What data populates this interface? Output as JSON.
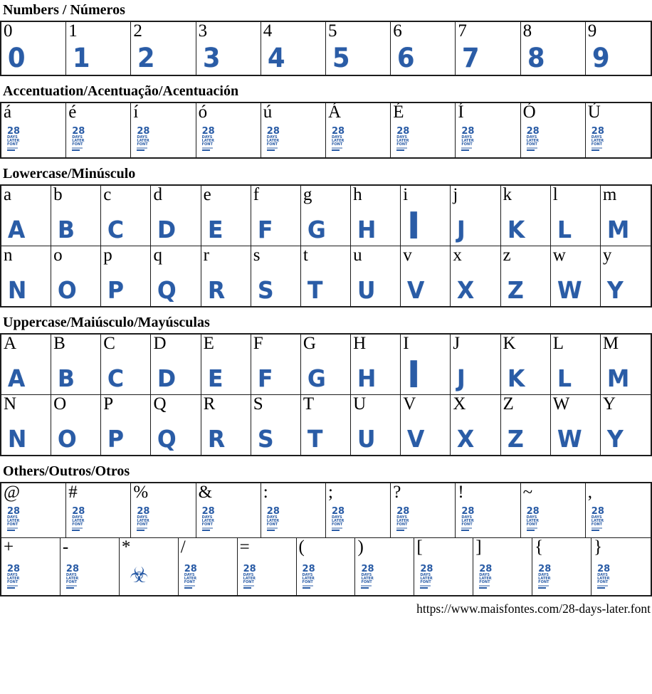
{
  "colors": {
    "glyph_blue": "#2a5ca6",
    "border": "#1c1c1c",
    "text": "#000000"
  },
  "placeholder_logo": {
    "line1": "28",
    "line2": "DAYS",
    "line3": "LATER",
    "line4": "FONT"
  },
  "biohazard_icon_char": "☣",
  "footer": {
    "url": "https://www.maisfontes.com/28-days-later.font"
  },
  "sections": [
    {
      "id": "numbers",
      "title": "Numbers / Números",
      "rows": [
        [
          {
            "char": "0",
            "type": "letter",
            "glyph": "0"
          },
          {
            "char": "1",
            "type": "letter",
            "glyph": "1"
          },
          {
            "char": "2",
            "type": "letter",
            "glyph": "2"
          },
          {
            "char": "3",
            "type": "letter",
            "glyph": "3"
          },
          {
            "char": "4",
            "type": "letter",
            "glyph": "4"
          },
          {
            "char": "5",
            "type": "letter",
            "glyph": "5"
          },
          {
            "char": "6",
            "type": "letter",
            "glyph": "6"
          },
          {
            "char": "7",
            "type": "letter",
            "glyph": "7"
          },
          {
            "char": "8",
            "type": "letter",
            "glyph": "8"
          },
          {
            "char": "9",
            "type": "letter",
            "glyph": "9"
          }
        ]
      ]
    },
    {
      "id": "accent",
      "title": "Accentuation/Acentuação/Acentuación",
      "rows": [
        [
          {
            "char": "á",
            "type": "logo"
          },
          {
            "char": "é",
            "type": "logo"
          },
          {
            "char": "í",
            "type": "logo"
          },
          {
            "char": "ó",
            "type": "logo"
          },
          {
            "char": "ú",
            "type": "logo"
          },
          {
            "char": "Á",
            "type": "logo"
          },
          {
            "char": "É",
            "type": "logo"
          },
          {
            "char": "Í",
            "type": "logo"
          },
          {
            "char": "Ó",
            "type": "logo"
          },
          {
            "char": "Ú",
            "type": "logo"
          }
        ]
      ]
    },
    {
      "id": "lowercase",
      "title": "Lowercase/Minúsculo",
      "rows": [
        [
          {
            "char": "a",
            "type": "letter",
            "glyph": "A"
          },
          {
            "char": "b",
            "type": "letter",
            "glyph": "B"
          },
          {
            "char": "c",
            "type": "letter",
            "glyph": "C"
          },
          {
            "char": "d",
            "type": "letter",
            "glyph": "D"
          },
          {
            "char": "e",
            "type": "letter",
            "glyph": "E"
          },
          {
            "char": "f",
            "type": "letter",
            "glyph": "F"
          },
          {
            "char": "g",
            "type": "letter",
            "glyph": "G"
          },
          {
            "char": "h",
            "type": "letter",
            "glyph": "H"
          },
          {
            "char": "i",
            "type": "letter",
            "glyph": "I"
          },
          {
            "char": "j",
            "type": "letter",
            "glyph": "J"
          },
          {
            "char": "k",
            "type": "letter",
            "glyph": "K"
          },
          {
            "char": "l",
            "type": "letter",
            "glyph": "L"
          },
          {
            "char": "m",
            "type": "letter",
            "glyph": "M"
          }
        ],
        [
          {
            "char": "n",
            "type": "letter",
            "glyph": "N"
          },
          {
            "char": "o",
            "type": "letter",
            "glyph": "O"
          },
          {
            "char": "p",
            "type": "letter",
            "glyph": "P"
          },
          {
            "char": "q",
            "type": "letter",
            "glyph": "Q"
          },
          {
            "char": "r",
            "type": "letter",
            "glyph": "R"
          },
          {
            "char": "s",
            "type": "letter",
            "glyph": "S"
          },
          {
            "char": "t",
            "type": "letter",
            "glyph": "T"
          },
          {
            "char": "u",
            "type": "letter",
            "glyph": "U"
          },
          {
            "char": "v",
            "type": "letter",
            "glyph": "V"
          },
          {
            "char": "x",
            "type": "letter",
            "glyph": "X"
          },
          {
            "char": "z",
            "type": "letter",
            "glyph": "Z"
          },
          {
            "char": "w",
            "type": "letter",
            "glyph": "W"
          },
          {
            "char": "y",
            "type": "letter",
            "glyph": "Y"
          }
        ]
      ]
    },
    {
      "id": "uppercase",
      "title": "Uppercase/Maiúsculo/Mayúsculas",
      "rows": [
        [
          {
            "char": "A",
            "type": "letter",
            "glyph": "A"
          },
          {
            "char": "B",
            "type": "letter",
            "glyph": "B"
          },
          {
            "char": "C",
            "type": "letter",
            "glyph": "C"
          },
          {
            "char": "D",
            "type": "letter",
            "glyph": "D"
          },
          {
            "char": "E",
            "type": "letter",
            "glyph": "E"
          },
          {
            "char": "F",
            "type": "letter",
            "glyph": "F"
          },
          {
            "char": "G",
            "type": "letter",
            "glyph": "G"
          },
          {
            "char": "H",
            "type": "letter",
            "glyph": "H"
          },
          {
            "char": "I",
            "type": "letter",
            "glyph": "I"
          },
          {
            "char": "J",
            "type": "letter",
            "glyph": "J"
          },
          {
            "char": "K",
            "type": "letter",
            "glyph": "K"
          },
          {
            "char": "L",
            "type": "letter",
            "glyph": "L"
          },
          {
            "char": "M",
            "type": "letter",
            "glyph": "M"
          }
        ],
        [
          {
            "char": "N",
            "type": "letter",
            "glyph": "N"
          },
          {
            "char": "O",
            "type": "letter",
            "glyph": "O"
          },
          {
            "char": "P",
            "type": "letter",
            "glyph": "P"
          },
          {
            "char": "Q",
            "type": "letter",
            "glyph": "Q"
          },
          {
            "char": "R",
            "type": "letter",
            "glyph": "R"
          },
          {
            "char": "S",
            "type": "letter",
            "glyph": "S"
          },
          {
            "char": "T",
            "type": "letter",
            "glyph": "T"
          },
          {
            "char": "U",
            "type": "letter",
            "glyph": "U"
          },
          {
            "char": "V",
            "type": "letter",
            "glyph": "V"
          },
          {
            "char": "X",
            "type": "letter",
            "glyph": "X"
          },
          {
            "char": "Z",
            "type": "letter",
            "glyph": "Z"
          },
          {
            "char": "W",
            "type": "letter",
            "glyph": "W"
          },
          {
            "char": "Y",
            "type": "letter",
            "glyph": "Y"
          }
        ]
      ]
    },
    {
      "id": "others",
      "title": "Others/Outros/Otros",
      "rows": [
        [
          {
            "char": "@",
            "type": "logo"
          },
          {
            "char": "#",
            "type": "logo"
          },
          {
            "char": "%",
            "type": "logo"
          },
          {
            "char": "&",
            "type": "logo"
          },
          {
            "char": ":",
            "type": "logo"
          },
          {
            "char": ";",
            "type": "logo"
          },
          {
            "char": "?",
            "type": "logo"
          },
          {
            "char": "!",
            "type": "logo"
          },
          {
            "char": "~",
            "type": "logo"
          },
          {
            "char": ",",
            "type": "logo"
          }
        ],
        [
          {
            "char": "+",
            "type": "logo"
          },
          {
            "char": "-",
            "type": "logo"
          },
          {
            "char": "*",
            "type": "biohazard"
          },
          {
            "char": "/",
            "type": "logo"
          },
          {
            "char": "=",
            "type": "logo"
          },
          {
            "char": "(",
            "type": "logo"
          },
          {
            "char": ")",
            "type": "logo"
          },
          {
            "char": "[",
            "type": "logo"
          },
          {
            "char": "]",
            "type": "logo"
          },
          {
            "char": "{",
            "type": "logo"
          },
          {
            "char": "}",
            "type": "logo"
          }
        ]
      ]
    }
  ]
}
